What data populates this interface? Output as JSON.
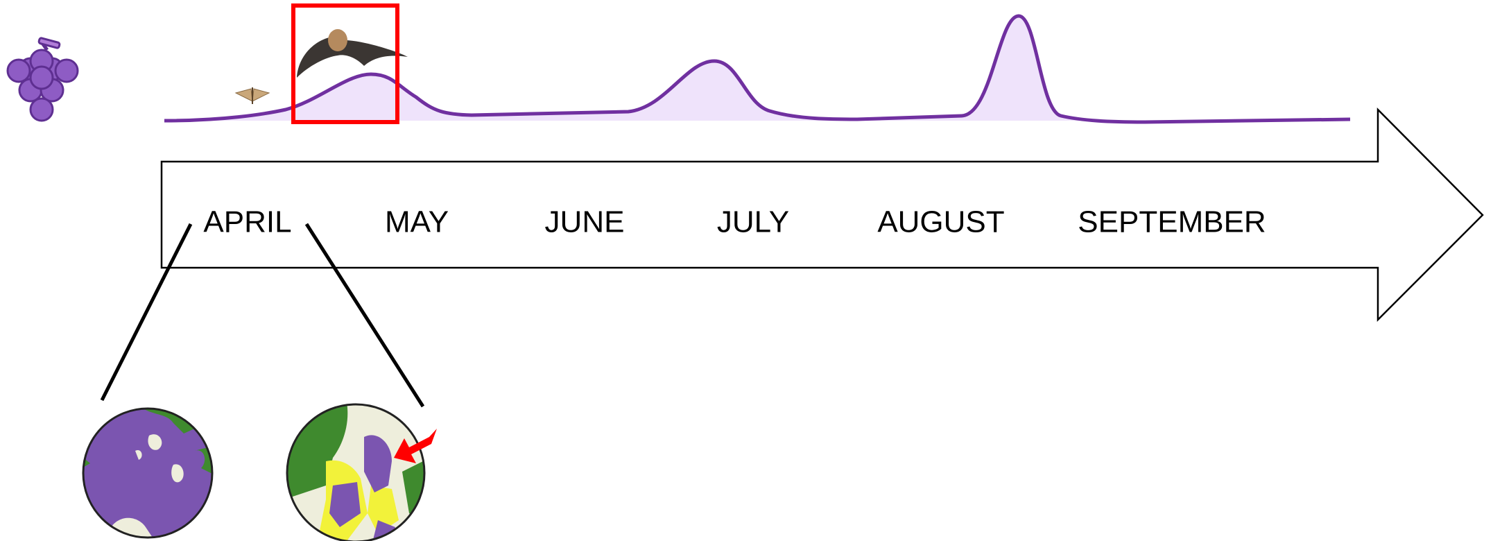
{
  "months": [
    "APRIL",
    "MAY",
    "JUNE",
    "JULY",
    "AUGUST",
    "SEPTEMBER"
  ]
}
